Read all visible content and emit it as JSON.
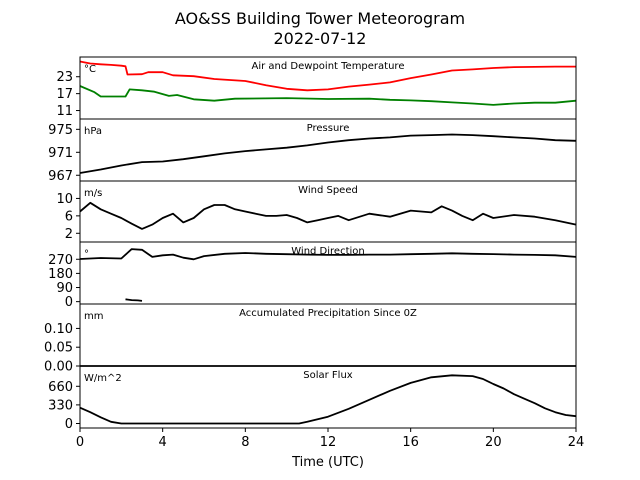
{
  "figure": {
    "title_line1": "AO&SS Building Tower Meteorogram",
    "title_line2": "2022-07-12",
    "xlabel": "Time (UTC)"
  },
  "chart_data": {
    "type": "line",
    "x_range": [
      0,
      24
    ],
    "x_ticks": [
      0,
      4,
      8,
      12,
      16,
      20,
      24
    ],
    "panels": [
      {
        "title": "Air and Dewpoint Temperature",
        "unit": "°C",
        "ylim": [
          8,
          30
        ],
        "yticks": [
          11,
          17,
          23
        ],
        "series": [
          {
            "color": "#ff0000",
            "points": [
              [
                0,
                28.4
              ],
              [
                0.5,
                27.7
              ],
              [
                1,
                27.4
              ],
              [
                1.5,
                27.2
              ],
              [
                2,
                26.9
              ],
              [
                2.2,
                26.7
              ],
              [
                2.3,
                23.8
              ],
              [
                3,
                23.9
              ],
              [
                3.3,
                24.6
              ],
              [
                4,
                24.6
              ],
              [
                4.5,
                23.5
              ],
              [
                5.5,
                23.2
              ],
              [
                6.5,
                22.2
              ],
              [
                8,
                21.5
              ],
              [
                9,
                20
              ],
              [
                10,
                18.7
              ],
              [
                11,
                18.2
              ],
              [
                12,
                18.5
              ],
              [
                13,
                19.5
              ],
              [
                14,
                20.2
              ],
              [
                15,
                21
              ],
              [
                16,
                22.5
              ],
              [
                17,
                23.8
              ],
              [
                18,
                25.2
              ],
              [
                19,
                25.6
              ],
              [
                20,
                26.1
              ],
              [
                21,
                26.4
              ],
              [
                22,
                26.5
              ],
              [
                23,
                26.6
              ],
              [
                24,
                26.6
              ]
            ]
          },
          {
            "color": "#008000",
            "points": [
              [
                0,
                19.7
              ],
              [
                0.7,
                17.5
              ],
              [
                1,
                16
              ],
              [
                2,
                16
              ],
              [
                2.2,
                16
              ],
              [
                2.4,
                18.5
              ],
              [
                3,
                18.2
              ],
              [
                3.6,
                17.7
              ],
              [
                4.3,
                16.2
              ],
              [
                4.7,
                16.5
              ],
              [
                5.5,
                15
              ],
              [
                6.5,
                14.5
              ],
              [
                7.5,
                15.2
              ],
              [
                10,
                15.4
              ],
              [
                12,
                15.1
              ],
              [
                14,
                15.2
              ],
              [
                15,
                14.8
              ],
              [
                16,
                14.6
              ],
              [
                17,
                14.3
              ],
              [
                18,
                13.9
              ],
              [
                19,
                13.5
              ],
              [
                20,
                13
              ],
              [
                21,
                13.5
              ],
              [
                22,
                13.8
              ],
              [
                23,
                13.8
              ],
              [
                24,
                14.5
              ]
            ]
          }
        ]
      },
      {
        "title": "Pressure",
        "unit": "hPa",
        "ylim": [
          966,
          976.8
        ],
        "yticks": [
          967,
          971,
          975
        ],
        "series": [
          {
            "color": "#000000",
            "points": [
              [
                0,
                967.4
              ],
              [
                1,
                968
              ],
              [
                2,
                968.7
              ],
              [
                3,
                969.3
              ],
              [
                4,
                969.4
              ],
              [
                5,
                969.8
              ],
              [
                6,
                970.3
              ],
              [
                7,
                970.8
              ],
              [
                8,
                971.2
              ],
              [
                9,
                971.5
              ],
              [
                10,
                971.8
              ],
              [
                11,
                972.2
              ],
              [
                12,
                972.7
              ],
              [
                13,
                973.1
              ],
              [
                14,
                973.4
              ],
              [
                15,
                973.6
              ],
              [
                16,
                973.9
              ],
              [
                17,
                974
              ],
              [
                18,
                974.1
              ],
              [
                19,
                974
              ],
              [
                20,
                973.8
              ],
              [
                21,
                973.6
              ],
              [
                22,
                973.4
              ],
              [
                23,
                973.1
              ],
              [
                24,
                973
              ]
            ]
          }
        ]
      },
      {
        "title": "Wind Speed",
        "unit": "m/s",
        "ylim": [
          0,
          14
        ],
        "yticks": [
          2,
          6,
          10
        ],
        "series": [
          {
            "color": "#000000",
            "points": [
              [
                0,
                7
              ],
              [
                0.5,
                9
              ],
              [
                1,
                7.5
              ],
              [
                1.5,
                6.5
              ],
              [
                2,
                5.5
              ],
              [
                2.5,
                4.2
              ],
              [
                3,
                3
              ],
              [
                3.5,
                4
              ],
              [
                4,
                5.5
              ],
              [
                4.5,
                6.5
              ],
              [
                5,
                4.5
              ],
              [
                5.5,
                5.5
              ],
              [
                6,
                7.5
              ],
              [
                6.5,
                8.5
              ],
              [
                7,
                8.5
              ],
              [
                7.5,
                7.5
              ],
              [
                8,
                7
              ],
              [
                8.5,
                6.5
              ],
              [
                9,
                6
              ],
              [
                9.5,
                6
              ],
              [
                10,
                6.2
              ],
              [
                10.5,
                5.5
              ],
              [
                11,
                4.5
              ],
              [
                11.5,
                5
              ],
              [
                12,
                5.5
              ],
              [
                12.5,
                6
              ],
              [
                13,
                5
              ],
              [
                14,
                6.5
              ],
              [
                15,
                5.8
              ],
              [
                16,
                7.2
              ],
              [
                17,
                6.8
              ],
              [
                17.5,
                8.2
              ],
              [
                18,
                7.2
              ],
              [
                18.5,
                6
              ],
              [
                19,
                5
              ],
              [
                19.5,
                6.5
              ],
              [
                20,
                5.5
              ],
              [
                21,
                6.2
              ],
              [
                22,
                5.8
              ],
              [
                23,
                5
              ],
              [
                24,
                4
              ]
            ]
          }
        ]
      },
      {
        "title": "Wind Direction",
        "unit": "°",
        "ylim": [
          -15,
          380
        ],
        "yticks": [
          0,
          90,
          180,
          270
        ],
        "series": [
          {
            "color": "#000000",
            "points": [
              [
                0,
                272
              ],
              [
                1,
                278
              ],
              [
                2,
                275
              ],
              [
                2.5,
                335
              ],
              [
                3,
                330
              ],
              [
                3.5,
                285
              ],
              [
                4,
                295
              ],
              [
                4.5,
                300
              ],
              [
                5,
                280
              ],
              [
                5.5,
                270
              ],
              [
                6,
                290
              ],
              [
                7,
                305
              ],
              [
                8,
                310
              ],
              [
                9,
                305
              ],
              [
                10,
                302
              ],
              [
                11,
                300
              ],
              [
                12,
                298
              ],
              [
                13,
                298
              ],
              [
                14,
                300
              ],
              [
                15,
                300
              ],
              [
                16,
                302
              ],
              [
                17,
                305
              ],
              [
                18,
                308
              ],
              [
                19,
                305
              ],
              [
                20,
                303
              ],
              [
                21,
                300
              ],
              [
                22,
                298
              ],
              [
                23,
                295
              ],
              [
                24,
                285
              ]
            ]
          },
          {
            "color": "#000000",
            "points": [
              [
                2.2,
                15
              ],
              [
                2.5,
                10
              ],
              [
                2.8,
                8
              ],
              [
                3,
                5
              ]
            ]
          }
        ]
      },
      {
        "title": "Accumulated Precipitation Since 0Z",
        "unit": "mm",
        "ylim": [
          0,
          0.165
        ],
        "yticks": [
          0,
          0.05,
          0.1
        ],
        "ytick_labels": [
          "0.00",
          "0.05",
          "0.10"
        ],
        "series": [
          {
            "color": "#000000",
            "points": [
              [
                0,
                0
              ],
              [
                24,
                0
              ]
            ]
          }
        ]
      },
      {
        "title": "Solar Flux",
        "unit": "W/m^2",
        "ylim": [
          -80,
          1020
        ],
        "yticks": [
          0,
          330,
          660
        ],
        "series": [
          {
            "color": "#000000",
            "points": [
              [
                0,
                280
              ],
              [
                0.5,
                200
              ],
              [
                1,
                110
              ],
              [
                1.5,
                30
              ],
              [
                2,
                0
              ],
              [
                4,
                0
              ],
              [
                6,
                0
              ],
              [
                8,
                0
              ],
              [
                10,
                0
              ],
              [
                10.6,
                0
              ],
              [
                11,
                30
              ],
              [
                12,
                120
              ],
              [
                13,
                260
              ],
              [
                14,
                420
              ],
              [
                15,
                580
              ],
              [
                16,
                720
              ],
              [
                17,
                820
              ],
              [
                18,
                855
              ],
              [
                19,
                840
              ],
              [
                19.5,
                790
              ],
              [
                20,
                700
              ],
              [
                20.5,
                620
              ],
              [
                21,
                520
              ],
              [
                21.5,
                440
              ],
              [
                22,
                360
              ],
              [
                22.5,
                270
              ],
              [
                23,
                200
              ],
              [
                23.5,
                150
              ],
              [
                24,
                130
              ]
            ]
          }
        ]
      }
    ]
  }
}
